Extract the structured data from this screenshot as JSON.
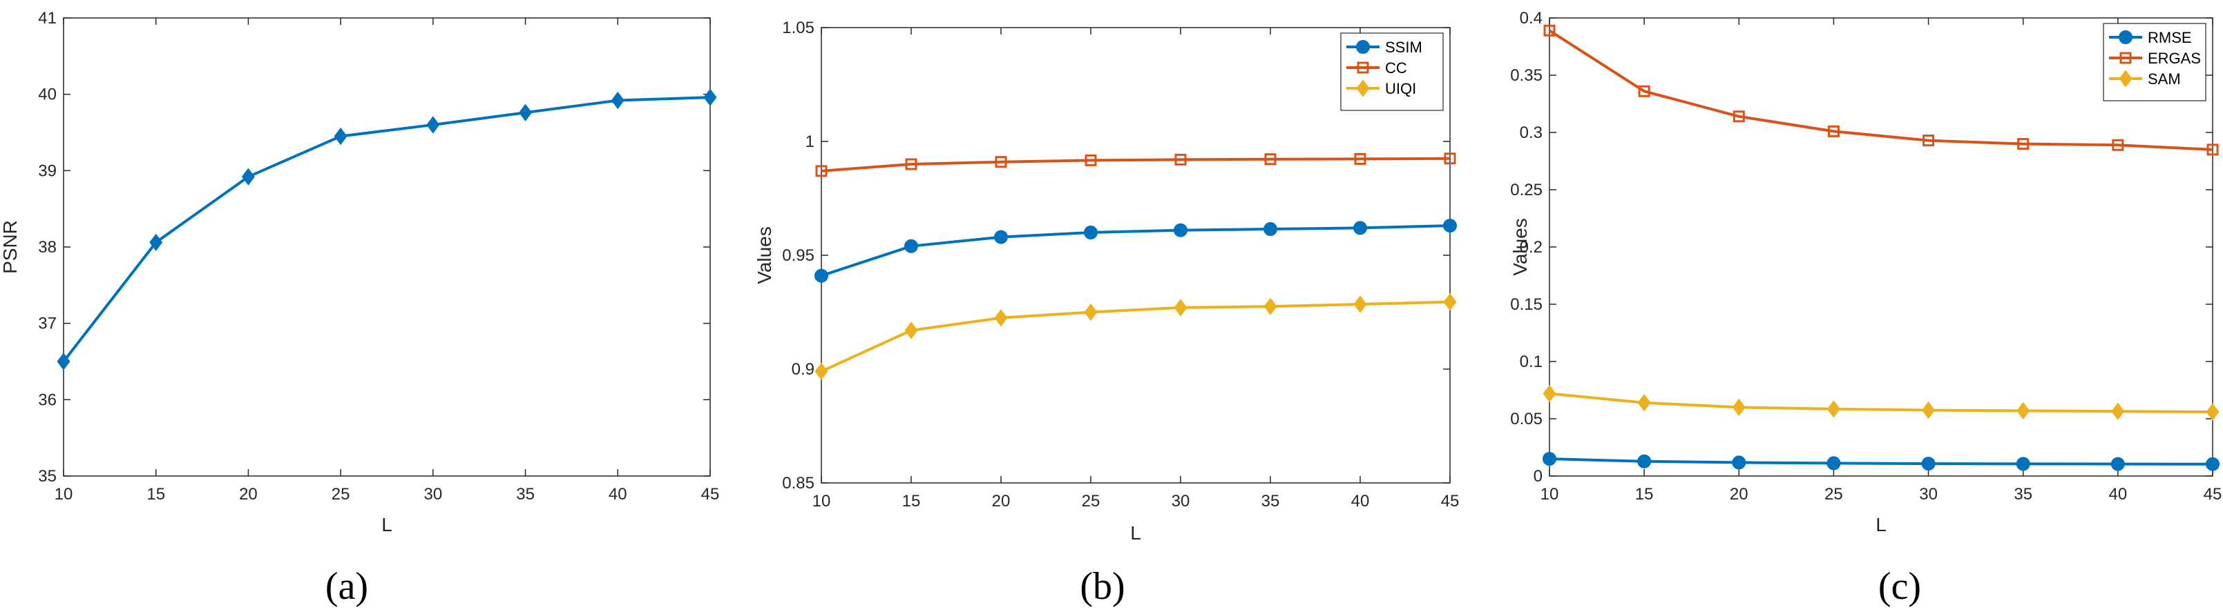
{
  "colors": {
    "blue": "#0072BD",
    "orange": "#D95319",
    "yellow": "#EDB120",
    "axis": "#262626"
  },
  "chart_data": [
    {
      "type": "line",
      "caption": "(a)",
      "xlabel": "L",
      "ylabel": "PSNR",
      "x": [
        10,
        15,
        20,
        25,
        30,
        35,
        40,
        45
      ],
      "xlim": [
        10,
        45
      ],
      "xticks": [
        "10",
        "15",
        "20",
        "25",
        "30",
        "35",
        "40",
        "45"
      ],
      "ylim": [
        35,
        41
      ],
      "yticks": [
        35,
        36,
        37,
        38,
        39,
        40,
        41
      ],
      "ytick_labels": [
        "35",
        "36",
        "37",
        "38",
        "39",
        "40",
        "41"
      ],
      "legend": null,
      "series": [
        {
          "name": "PSNR",
          "color": "#0072BD",
          "marker": "diamond",
          "values": [
            36.5,
            38.06,
            38.92,
            39.45,
            39.6,
            39.76,
            39.92,
            39.96
          ]
        }
      ]
    },
    {
      "type": "line",
      "caption": "(b)",
      "xlabel": "L",
      "ylabel": "Values",
      "x": [
        10,
        15,
        20,
        25,
        30,
        35,
        40,
        45
      ],
      "xlim": [
        10,
        45
      ],
      "xticks": [
        "10",
        "15",
        "20",
        "25",
        "30",
        "35",
        "40",
        "45"
      ],
      "ylim": [
        0.85,
        1.05
      ],
      "yticks": [
        0.85,
        0.9,
        0.95,
        1.0,
        1.05
      ],
      "ytick_labels": [
        "0.85",
        "0.9",
        "0.95",
        "1",
        "1.05"
      ],
      "legend": "top-right",
      "series": [
        {
          "name": "SSIM",
          "color": "#0072BD",
          "marker": "circle",
          "values": [
            0.941,
            0.954,
            0.958,
            0.96,
            0.961,
            0.9615,
            0.962,
            0.963
          ]
        },
        {
          "name": "CC",
          "color": "#D95319",
          "marker": "square",
          "values": [
            0.987,
            0.99,
            0.991,
            0.9917,
            0.992,
            0.9922,
            0.9923,
            0.9925
          ]
        },
        {
          "name": "UIQI",
          "color": "#EDB120",
          "marker": "diamond",
          "values": [
            0.899,
            0.917,
            0.9225,
            0.925,
            0.927,
            0.9275,
            0.9285,
            0.9295
          ]
        }
      ]
    },
    {
      "type": "line",
      "caption": "(c)",
      "xlabel": "L",
      "ylabel": "Values",
      "x": [
        10,
        15,
        20,
        25,
        30,
        35,
        40,
        45
      ],
      "xlim": [
        10,
        45
      ],
      "xticks": [
        "10",
        "15",
        "20",
        "25",
        "30",
        "35",
        "40",
        "45"
      ],
      "ylim": [
        0,
        0.4
      ],
      "yticks": [
        0,
        0.05,
        0.1,
        0.15,
        0.2,
        0.25,
        0.3,
        0.35,
        0.4
      ],
      "ytick_labels": [
        "0",
        "0.05",
        "0.1",
        "0.15",
        "0.2",
        "0.25",
        "0.3",
        "0.35",
        "0.4"
      ],
      "legend": "top-right",
      "series": [
        {
          "name": "RMSE",
          "color": "#0072BD",
          "marker": "circle",
          "values": [
            0.015,
            0.0128,
            0.0118,
            0.0112,
            0.0108,
            0.0106,
            0.0105,
            0.0104
          ]
        },
        {
          "name": "ERGAS",
          "color": "#D95319",
          "marker": "square",
          "values": [
            0.389,
            0.336,
            0.314,
            0.301,
            0.293,
            0.29,
            0.289,
            0.285
          ]
        },
        {
          "name": "SAM",
          "color": "#EDB120",
          "marker": "diamond",
          "values": [
            0.072,
            0.064,
            0.06,
            0.0585,
            0.0575,
            0.057,
            0.0565,
            0.056
          ]
        }
      ]
    }
  ]
}
